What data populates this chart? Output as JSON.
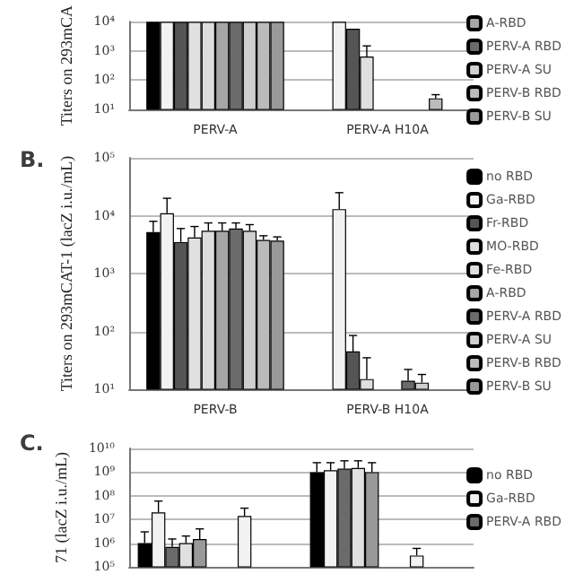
{
  "chart_data": [
    {
      "type": "bar",
      "ylabel": "Titers on 293mCA",
      "categories": [
        "PERV-A",
        "PERV-A H10A"
      ],
      "log": true,
      "ylim": [
        10,
        10000
      ],
      "yticks": [
        {
          "value": 10,
          "label": "10¹"
        },
        {
          "value": 100,
          "label": "10²"
        },
        {
          "value": 1000,
          "label": "10³"
        },
        {
          "value": 10000,
          "label": "10⁴"
        }
      ],
      "grid": "y",
      "legend": "right",
      "series": [
        {
          "color": "#000000",
          "values": [
            10000,
            null
          ]
        },
        {
          "color": "#f2f2f2",
          "values": [
            10000,
            10000
          ]
        },
        {
          "color": "#555555",
          "values": [
            10000,
            5800
          ]
        },
        {
          "color": "#e0e0e0",
          "values": [
            10000,
            650
          ],
          "errors": [
            null,
            [
              650,
              1500
            ]
          ]
        },
        {
          "color": "#dddddd",
          "values": [
            10000,
            null
          ]
        },
        {
          "name": "A-RBD",
          "color": "#a6a6a6",
          "values": [
            10000,
            null
          ]
        },
        {
          "name": "PERV-A RBD",
          "color": "#6b6b6b",
          "values": [
            10000,
            null
          ]
        },
        {
          "name": "PERV-A SU",
          "color": "#cfcfcf",
          "values": [
            10000,
            null
          ]
        },
        {
          "name": "PERV-B RBD",
          "color": "#bbbbbb",
          "values": [
            10000,
            24
          ],
          "errors": [
            null,
            [
              24,
              32
            ]
          ]
        },
        {
          "name": "PERV-B SU",
          "color": "#999999",
          "values": [
            10000,
            null
          ]
        }
      ]
    },
    {
      "type": "bar",
      "title": "B.",
      "ylabel": "Titers on 293mCAT-1 (lacZ i.u./mL)",
      "categories": [
        "PERV-B",
        "PERV-B H10A"
      ],
      "log": true,
      "ylim": [
        10,
        100000
      ],
      "yticks": [
        {
          "value": 10,
          "label": "10¹"
        },
        {
          "value": 100,
          "label": "10²"
        },
        {
          "value": 1000,
          "label": "10³"
        },
        {
          "value": 10000,
          "label": "10⁴"
        },
        {
          "value": 100000,
          "label": "10⁵"
        }
      ],
      "grid": "y",
      "legend": "right",
      "series": [
        {
          "name": "no RBD",
          "color": "#000000",
          "values": [
            5200,
            null
          ],
          "errors": [
            [
              5200,
              8000
            ],
            null
          ]
        },
        {
          "name": "Ga-RBD",
          "color": "#f2f2f2",
          "values": [
            11000,
            13000
          ],
          "errors": [
            [
              11000,
              20000
            ],
            [
              13000,
              25000
            ]
          ]
        },
        {
          "name": "Fr-RBD",
          "color": "#555555",
          "values": [
            3500,
            45
          ],
          "errors": [
            [
              3500,
              6000
            ],
            [
              45,
              85
            ]
          ]
        },
        {
          "name": "MO-RBD",
          "color": "#e0e0e0",
          "values": [
            4200,
            15
          ],
          "errors": [
            [
              4200,
              6500
            ],
            [
              15,
              35
            ]
          ]
        },
        {
          "name": "Fe-RBD",
          "color": "#dddddd",
          "values": [
            5500,
            null
          ],
          "errors": [
            [
              5500,
              7500
            ],
            null
          ]
        },
        {
          "name": "A-RBD",
          "color": "#a6a6a6",
          "values": [
            5500,
            null
          ],
          "errors": [
            [
              5500,
              7500
            ],
            null
          ]
        },
        {
          "name": "PERV-A RBD",
          "color": "#6b6b6b",
          "values": [
            6000,
            14
          ],
          "errors": [
            [
              6000,
              7500
            ],
            [
              14,
              22
            ]
          ]
        },
        {
          "name": "PERV-A SU",
          "color": "#cfcfcf",
          "values": [
            5500,
            13
          ],
          "errors": [
            [
              5500,
              7000
            ],
            [
              13,
              18
            ]
          ]
        },
        {
          "name": "PERV-B RBD",
          "color": "#bbbbbb",
          "values": [
            3800,
            null
          ],
          "errors": [
            [
              3800,
              4500
            ],
            null
          ]
        },
        {
          "name": "PERV-B SU",
          "color": "#999999",
          "values": [
            3700,
            null
          ],
          "errors": [
            [
              3700,
              4300
            ],
            null
          ]
        }
      ]
    },
    {
      "type": "bar",
      "title": "C.",
      "ylabel": "71 (lacZ i.u./mL)",
      "categories": [
        null,
        null,
        null,
        null
      ],
      "log": true,
      "ylim": [
        100000,
        10000000000
      ],
      "yticks": [
        {
          "value": 100000,
          "label": "10⁵"
        },
        {
          "value": 1000000,
          "label": "10⁶"
        },
        {
          "value": 10000000,
          "label": "10⁷"
        },
        {
          "value": 100000000,
          "label": "10⁸"
        },
        {
          "value": 1000000000,
          "label": "10⁹"
        },
        {
          "value": 10000000000,
          "label": "10¹⁰"
        }
      ],
      "grid": "y",
      "legend": "right",
      "tick_labels": "y",
      "series": [
        {
          "name": "no RBD",
          "color": "#000000",
          "values": [
            1000000,
            null,
            1000000000,
            null
          ],
          "errors": [
            [
              1000000,
              3000000
            ],
            null,
            [
              1000000000,
              2500000000
            ],
            null
          ]
        },
        {
          "name": "Ga-RBD",
          "color": "#f2f2f2",
          "values": [
            20000000,
            14000000,
            1200000000,
            300000
          ],
          "errors": [
            [
              20000000,
              60000000
            ],
            [
              14000000,
              30000000
            ],
            [
              1200000000,
              2500000000
            ],
            [
              300000,
              600000
            ]
          ]
        },
        {
          "name": "PERV-A RBD",
          "color": "#6b6b6b",
          "values": [
            700000,
            null,
            1400000000,
            null
          ],
          "errors": [
            [
              700000,
              1500000
            ],
            null,
            [
              1400000000,
              3000000000
            ],
            null
          ]
        },
        {
          "color": "#e0e0e0",
          "values": [
            1000000,
            null,
            1500000000,
            null
          ],
          "errors": [
            [
              1000000,
              2000000
            ],
            null,
            [
              1500000000,
              3000000000
            ],
            null
          ]
        },
        {
          "color": "#999999",
          "values": [
            1500000,
            null,
            1000000000,
            null
          ],
          "errors": [
            [
              1500000,
              4000000
            ],
            null,
            [
              1000000000,
              2500000000
            ],
            null
          ]
        }
      ]
    }
  ]
}
